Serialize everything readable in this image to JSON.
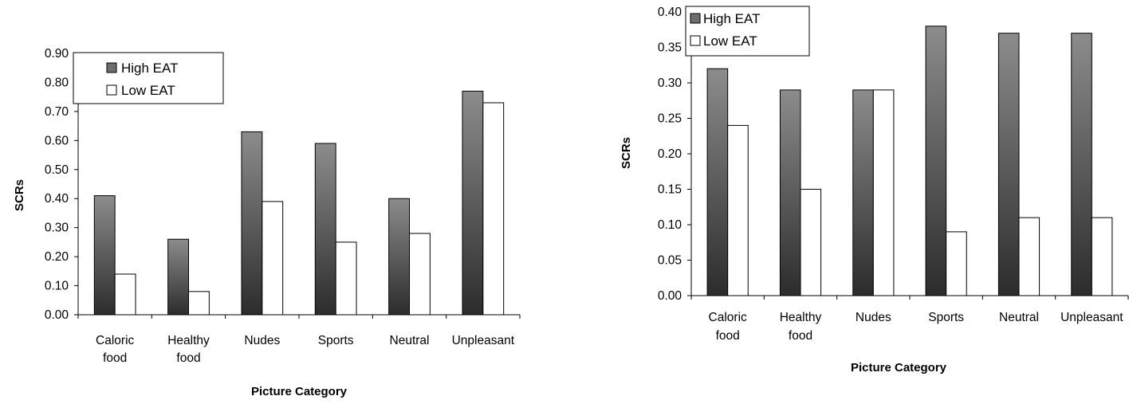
{
  "colors": {
    "high_gradient_top": "#8c8c8c",
    "high_gradient_bottom": "#2c2c2c",
    "low_fill": "#ffffff",
    "outline": "#000000"
  },
  "chart_data": [
    {
      "type": "bar",
      "title": "",
      "xlabel": "Picture Category",
      "ylabel": "SCRs",
      "ylim": [
        0,
        0.9
      ],
      "y_ticks": [
        "0.00",
        "0.10",
        "0.20",
        "0.30",
        "0.40",
        "0.50",
        "0.60",
        "0.70",
        "0.80",
        "0.90"
      ],
      "categories": [
        [
          "Caloric",
          "food"
        ],
        [
          "Healthy",
          "food"
        ],
        [
          "Nudes"
        ],
        [
          "Sports"
        ],
        [
          "Neutral"
        ],
        [
          "Unpleasant"
        ]
      ],
      "series": [
        {
          "name": "High EAT",
          "values": [
            0.41,
            0.26,
            0.63,
            0.59,
            0.4,
            0.77
          ]
        },
        {
          "name": "Low EAT",
          "values": [
            0.14,
            0.08,
            0.39,
            0.25,
            0.28,
            0.73
          ]
        }
      ],
      "legend": "top-left",
      "grid": false
    },
    {
      "type": "bar",
      "title": "",
      "xlabel": "Picture Category",
      "ylabel": "SCRs",
      "ylim": [
        0,
        0.4
      ],
      "y_ticks": [
        "0.00",
        "0.05",
        "0.10",
        "0.15",
        "0.20",
        "0.25",
        "0.30",
        "0.35",
        "0.40"
      ],
      "categories": [
        [
          "Caloric",
          "food"
        ],
        [
          "Healthy",
          "food"
        ],
        [
          "Nudes"
        ],
        [
          "Sports"
        ],
        [
          "Neutral"
        ],
        [
          "Unpleasant"
        ]
      ],
      "series": [
        {
          "name": "High EAT",
          "values": [
            0.32,
            0.29,
            0.29,
            0.38,
            0.37,
            0.37
          ]
        },
        {
          "name": "Low EAT",
          "values": [
            0.24,
            0.15,
            0.29,
            0.09,
            0.11,
            0.11
          ]
        }
      ],
      "legend": "top-left",
      "grid": false
    }
  ]
}
